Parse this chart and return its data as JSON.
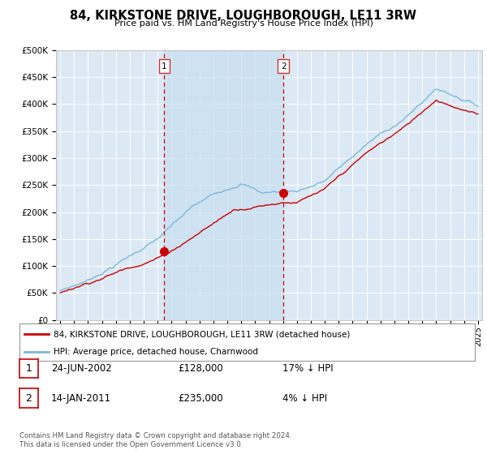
{
  "title": "84, KIRKSTONE DRIVE, LOUGHBOROUGH, LE11 3RW",
  "subtitle": "Price paid vs. HM Land Registry's House Price Index (HPI)",
  "ylabel_ticks": [
    "£0",
    "£50K",
    "£100K",
    "£150K",
    "£200K",
    "£250K",
    "£300K",
    "£350K",
    "£400K",
    "£450K",
    "£500K"
  ],
  "ytick_values": [
    0,
    50000,
    100000,
    150000,
    200000,
    250000,
    300000,
    350000,
    400000,
    450000,
    500000
  ],
  "ylim": [
    0,
    500000
  ],
  "xlim_start": 1994.7,
  "xlim_end": 2025.3,
  "background_color": "#ffffff",
  "plot_bg_color": "#dce9f5",
  "grid_color": "#ffffff",
  "hpi_color": "#7ab8d9",
  "price_color": "#cc0000",
  "marker1_x": 2002.48,
  "marker1_y": 128000,
  "marker2_x": 2011.04,
  "marker2_y": 235000,
  "vline1_x": 2002.48,
  "vline2_x": 2011.04,
  "shade_color": "#c8dff0",
  "legend_label_price": "84, KIRKSTONE DRIVE, LOUGHBOROUGH, LE11 3RW (detached house)",
  "legend_label_hpi": "HPI: Average price, detached house, Charnwood",
  "table_rows": [
    {
      "num": "1",
      "date": "24-JUN-2002",
      "price": "£128,000",
      "hpi": "17% ↓ HPI"
    },
    {
      "num": "2",
      "date": "14-JAN-2011",
      "price": "£235,000",
      "hpi": "4% ↓ HPI"
    }
  ],
  "footer": "Contains HM Land Registry data © Crown copyright and database right 2024.\nThis data is licensed under the Open Government Licence v3.0.",
  "xtick_years": [
    1995,
    1996,
    1997,
    1998,
    1999,
    2000,
    2001,
    2002,
    2003,
    2004,
    2005,
    2006,
    2007,
    2008,
    2009,
    2010,
    2011,
    2012,
    2013,
    2014,
    2015,
    2016,
    2017,
    2018,
    2019,
    2020,
    2021,
    2022,
    2023,
    2024,
    2025
  ]
}
